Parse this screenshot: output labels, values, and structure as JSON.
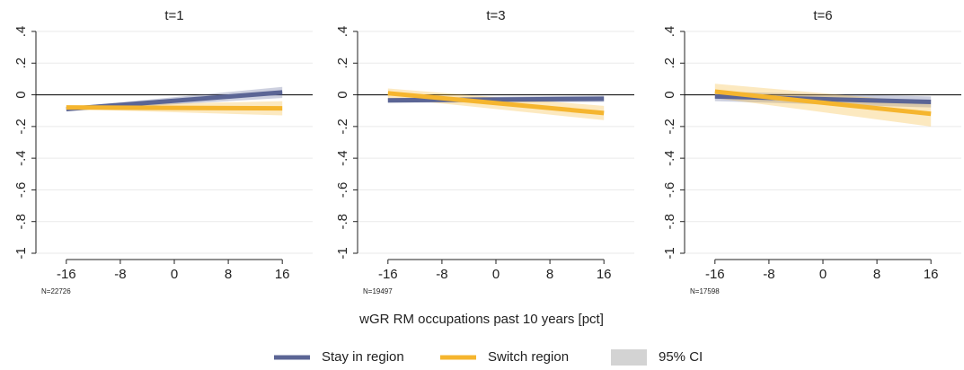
{
  "chart_data": [
    {
      "type": "line",
      "title": "t=1",
      "note": "N=22726",
      "x": [
        -16,
        16
      ],
      "xlim": [
        -20.5,
        20.5
      ],
      "xticks": [
        -16,
        -8,
        0,
        8,
        16
      ],
      "ylim": [
        -1,
        0.4
      ],
      "yticks": [
        -1,
        {
          "value": -0.8,
          "label": "-.8"
        },
        {
          "value": -0.6,
          "label": "-.6"
        },
        {
          "value": -0.4,
          "label": "-.4"
        },
        {
          "value": -0.2,
          "label": "-.2"
        },
        0,
        {
          "value": 0.2,
          "label": ".2"
        },
        {
          "value": 0.4,
          "label": ".4"
        }
      ],
      "grid": true,
      "hline": 0,
      "series": [
        {
          "name": "Stay in region",
          "color": "#5b6595",
          "values": [
            -0.09,
            0.015
          ],
          "ci_lower": [
            -0.1,
            -0.02
          ],
          "ci_upper": [
            -0.08,
            0.05
          ]
        },
        {
          "name": "Switch region",
          "color": "#f5b52e",
          "values": [
            -0.08,
            -0.085
          ],
          "ci_lower": [
            -0.09,
            -0.13
          ],
          "ci_upper": [
            -0.07,
            -0.04
          ]
        }
      ]
    },
    {
      "type": "line",
      "title": "t=3",
      "note": "N=19497",
      "x": [
        -16,
        16
      ],
      "xlim": [
        -20.5,
        20.5
      ],
      "xticks": [
        -16,
        -8,
        0,
        8,
        16
      ],
      "ylim": [
        -1,
        0.4
      ],
      "yticks": [
        -1,
        {
          "value": -0.8,
          "label": "-.8"
        },
        {
          "value": -0.6,
          "label": "-.6"
        },
        {
          "value": -0.4,
          "label": "-.4"
        },
        {
          "value": -0.2,
          "label": "-.2"
        },
        0,
        {
          "value": 0.2,
          "label": ".2"
        },
        {
          "value": 0.4,
          "label": ".4"
        }
      ],
      "grid": true,
      "hline": 0,
      "series": [
        {
          "name": "Stay in region",
          "color": "#5b6595",
          "values": [
            -0.035,
            -0.025
          ],
          "ci_lower": [
            -0.05,
            -0.045
          ],
          "ci_upper": [
            -0.02,
            -0.005
          ]
        },
        {
          "name": "Switch region",
          "color": "#f5b52e",
          "values": [
            0.01,
            -0.115
          ],
          "ci_lower": [
            -0.02,
            -0.16
          ],
          "ci_upper": [
            0.04,
            -0.07
          ]
        }
      ]
    },
    {
      "type": "line",
      "title": "t=6",
      "note": "N=17598",
      "x": [
        -16,
        16
      ],
      "xlim": [
        -20.5,
        20.5
      ],
      "xticks": [
        -16,
        -8,
        0,
        8,
        16
      ],
      "ylim": [
        -1,
        0.4
      ],
      "yticks": [
        -1,
        {
          "value": -0.8,
          "label": "-.8"
        },
        {
          "value": -0.6,
          "label": "-.6"
        },
        {
          "value": -0.4,
          "label": "-.4"
        },
        {
          "value": -0.2,
          "label": "-.2"
        },
        0,
        {
          "value": 0.2,
          "label": ".2"
        },
        {
          "value": 0.4,
          "label": ".4"
        }
      ],
      "grid": true,
      "hline": 0,
      "series": [
        {
          "name": "Stay in region",
          "color": "#5b6595",
          "values": [
            -0.01,
            -0.045
          ],
          "ci_lower": [
            -0.04,
            -0.08
          ],
          "ci_upper": [
            0.02,
            -0.01
          ]
        },
        {
          "name": "Switch region",
          "color": "#f5b52e",
          "values": [
            0.02,
            -0.12
          ],
          "ci_lower": [
            -0.02,
            -0.2
          ],
          "ci_upper": [
            0.07,
            -0.05
          ]
        }
      ]
    }
  ],
  "xlabel": "wGR RM occupations past 10 years [pct]",
  "ci_label": "95% CI",
  "ci_color": "#d3d3d3"
}
